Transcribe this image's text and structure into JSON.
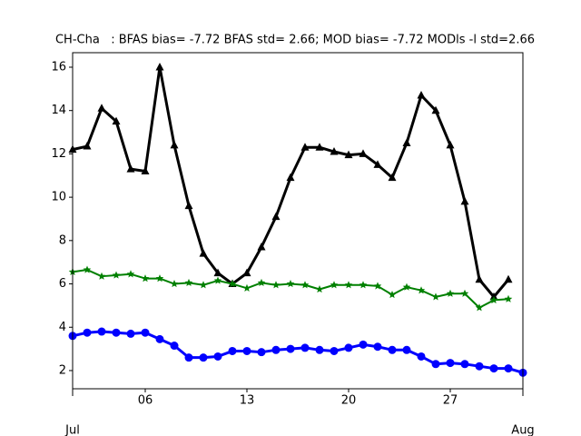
{
  "chart_data": {
    "type": "line",
    "title": "CH-Cha   : BFAS bias= -7.72 BFAS std= 2.66; MOD bias= -7.72 MODls -l std=2.66",
    "x": [
      1,
      2,
      3,
      4,
      5,
      6,
      7,
      8,
      9,
      10,
      11,
      12,
      13,
      14,
      15,
      16,
      17,
      18,
      19,
      20,
      21,
      22,
      23,
      24,
      25,
      26,
      27,
      28,
      29,
      30,
      31,
      32
    ],
    "series": [
      {
        "color": "#000000",
        "marker": "triangle",
        "linewidth": 3,
        "values": [
          12.2,
          12.35,
          14.1,
          13.5,
          11.3,
          11.2,
          16.0,
          12.4,
          9.6,
          7.4,
          6.5,
          6.0,
          6.5,
          7.7,
          9.1,
          10.9,
          12.3,
          12.3,
          12.1,
          11.95,
          12.0,
          11.5,
          10.9,
          12.5,
          14.7,
          14.0,
          12.4,
          9.8,
          6.2,
          5.4,
          6.2,
          null
        ]
      },
      {
        "color": "#008000",
        "marker": "star",
        "linewidth": 2,
        "values": [
          6.55,
          6.65,
          6.35,
          6.4,
          6.45,
          6.25,
          6.25,
          6.0,
          6.05,
          5.95,
          6.15,
          6.0,
          5.8,
          6.05,
          5.95,
          6.0,
          5.95,
          5.75,
          5.95,
          5.95,
          5.95,
          5.9,
          5.5,
          5.85,
          5.7,
          5.4,
          5.55,
          5.55,
          4.9,
          5.25,
          5.3,
          null
        ]
      },
      {
        "color": "#0000ff",
        "marker": "circle",
        "linewidth": 3,
        "values": [
          3.6,
          3.75,
          3.8,
          3.75,
          3.7,
          3.75,
          3.45,
          3.15,
          2.6,
          2.6,
          2.65,
          2.9,
          2.9,
          2.85,
          2.95,
          3.0,
          3.05,
          2.95,
          2.9,
          3.05,
          3.2,
          3.1,
          2.95,
          2.95,
          2.65,
          2.3,
          2.35,
          2.3,
          2.2,
          2.1,
          2.1,
          1.9
        ]
      }
    ],
    "xlim": [
      1,
      32
    ],
    "xticks": [
      {
        "value": 6,
        "label": "06"
      },
      {
        "value": 13,
        "label": "13"
      },
      {
        "value": 20,
        "label": "20"
      },
      {
        "value": 27,
        "label": "27"
      }
    ],
    "xmonth_ticks": [
      {
        "value": 1,
        "label": "Jul"
      },
      {
        "value": 32,
        "label": "Aug"
      }
    ],
    "ylim": [
      1.16,
      16.67
    ],
    "yticks": [
      2,
      4,
      6,
      8,
      10,
      12,
      14,
      16
    ],
    "grid": false
  }
}
